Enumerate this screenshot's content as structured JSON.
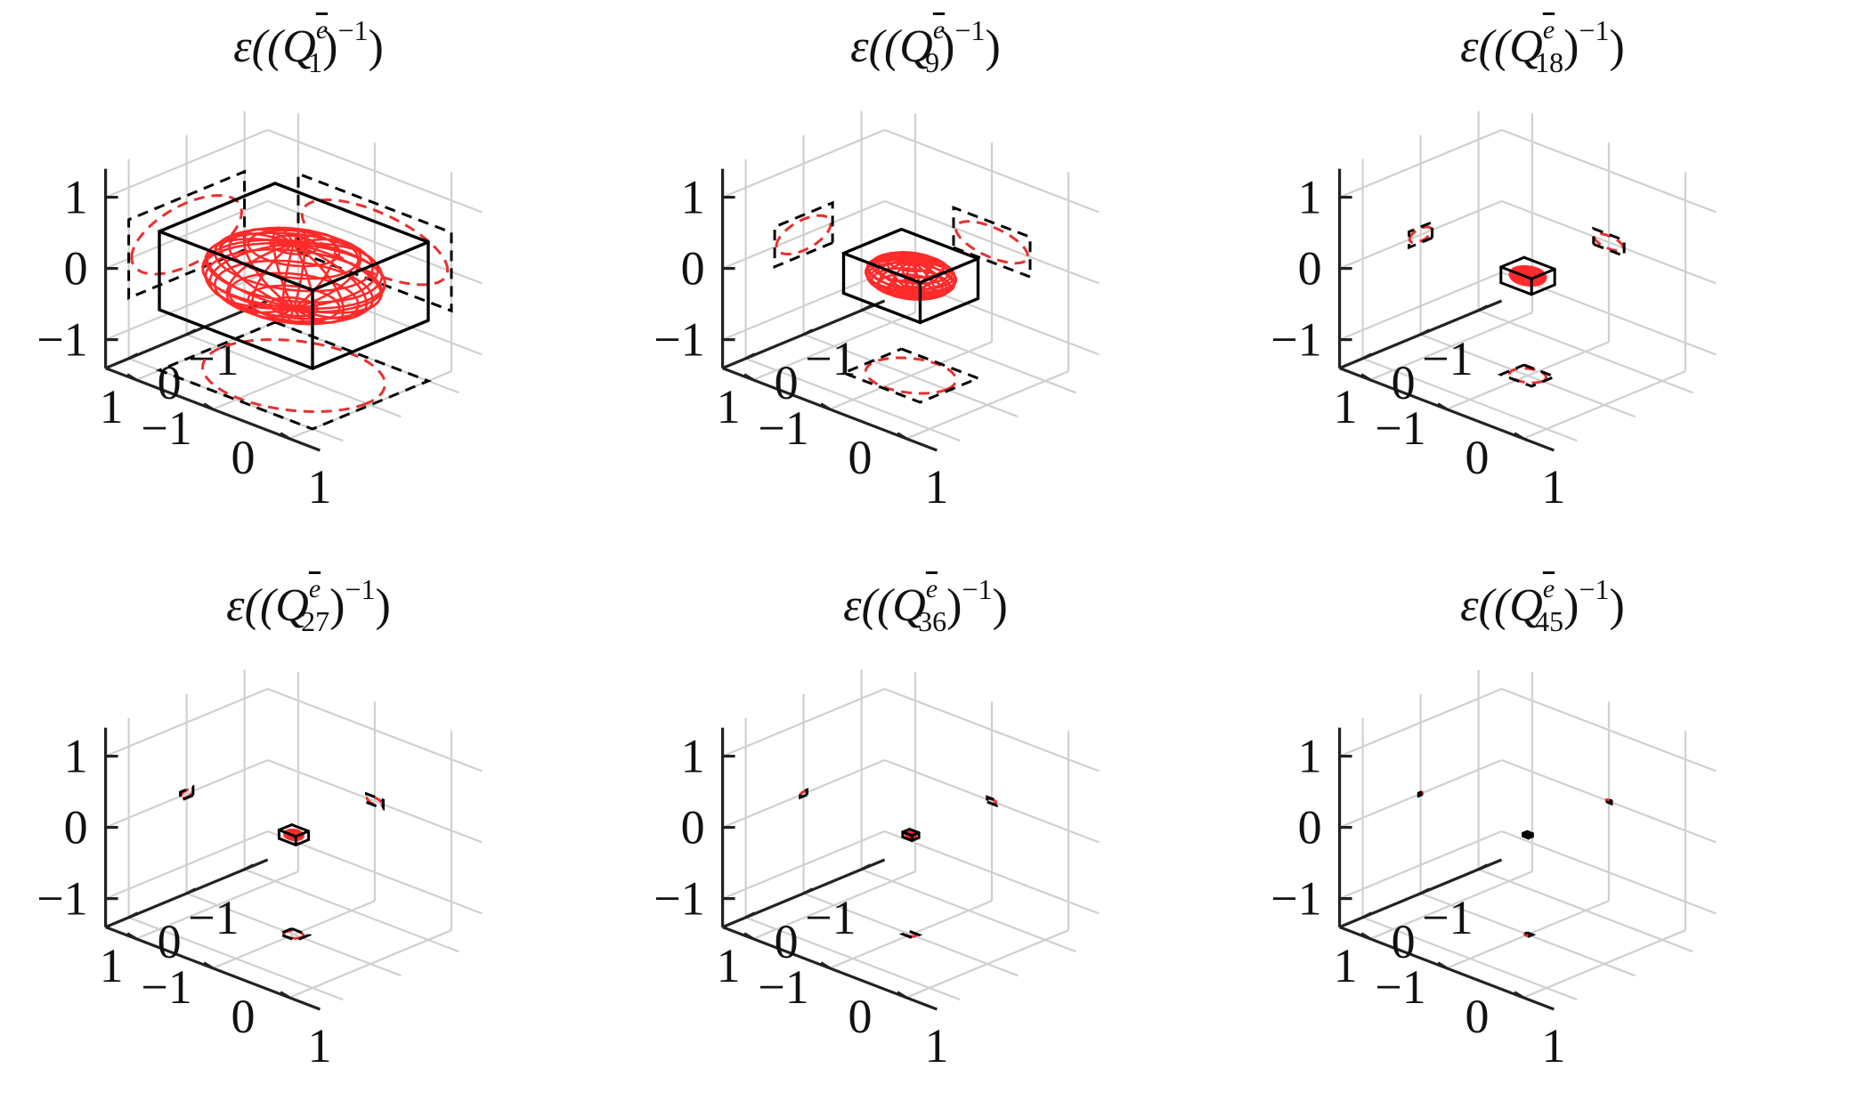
{
  "chart_data": [
    {
      "type": "3d-ellipsoid-projection",
      "title": {
        "prefix": "ε((Q",
        "superscript": "e",
        "subscript": "1",
        "suffix_sup": "−1",
        "close": ")"
      },
      "scale": 1.0,
      "x_ticks": [
        "−1",
        "0",
        "1"
      ],
      "y_ticks": [
        "−1",
        "0",
        "1"
      ],
      "z_ticks": [
        "−1",
        "0",
        "1"
      ],
      "ellipsoid_semi_axes": [
        0.95,
        0.95,
        0.45
      ],
      "box_half_extents": [
        1.0,
        1.0,
        0.55
      ]
    },
    {
      "type": "3d-ellipsoid-projection",
      "title": {
        "prefix": "ε((Q",
        "superscript": "e",
        "subscript": "9",
        "suffix_sup": "−1",
        "close": ")"
      },
      "scale": 0.5,
      "x_ticks": [
        "−1",
        "0",
        "1"
      ],
      "y_ticks": [
        "−1",
        "0",
        "1"
      ],
      "z_ticks": [
        "−1",
        "0",
        "1"
      ],
      "ellipsoid_semi_axes": [
        0.47,
        0.47,
        0.22
      ],
      "box_half_extents": [
        0.5,
        0.5,
        0.28
      ]
    },
    {
      "type": "3d-ellipsoid-projection",
      "title": {
        "prefix": "ε((Q",
        "superscript": "e",
        "subscript": "18",
        "suffix_sup": "−1",
        "close": ")"
      },
      "scale": 0.2,
      "x_ticks": [
        "−1",
        "0",
        "1"
      ],
      "y_ticks": [
        "−1",
        "0",
        "1"
      ],
      "z_ticks": [
        "−1",
        "0",
        "1"
      ],
      "ellipsoid_semi_axes": [
        0.19,
        0.19,
        0.09
      ],
      "box_half_extents": [
        0.2,
        0.2,
        0.11
      ]
    },
    {
      "type": "3d-ellipsoid-projection",
      "title": {
        "prefix": "ε((Q",
        "superscript": "e",
        "subscript": "27",
        "suffix_sup": "−1",
        "close": ")"
      },
      "scale": 0.11,
      "x_ticks": [
        "−1",
        "0",
        "1"
      ],
      "y_ticks": [
        "−1",
        "0",
        "1"
      ],
      "z_ticks": [
        "−1",
        "0",
        "1"
      ],
      "ellipsoid_semi_axes": [
        0.1,
        0.1,
        0.05
      ],
      "box_half_extents": [
        0.11,
        0.11,
        0.06
      ]
    },
    {
      "type": "3d-ellipsoid-projection",
      "title": {
        "prefix": "ε((Q",
        "superscript": "e",
        "subscript": "36",
        "suffix_sup": "−1",
        "close": ")"
      },
      "scale": 0.06,
      "x_ticks": [
        "−1",
        "0",
        "1"
      ],
      "y_ticks": [
        "−1",
        "0",
        "1"
      ],
      "z_ticks": [
        "−1",
        "0",
        "1"
      ],
      "ellipsoid_semi_axes": [
        0.055,
        0.055,
        0.03
      ],
      "box_half_extents": [
        0.06,
        0.06,
        0.035
      ]
    },
    {
      "type": "3d-ellipsoid-projection",
      "title": {
        "prefix": "ε((Q",
        "superscript": "e",
        "subscript": "45",
        "suffix_sup": "−1",
        "close": ")"
      },
      "scale": 0.035,
      "x_ticks": [
        "−1",
        "0",
        "1"
      ],
      "y_ticks": [
        "−1",
        "0",
        "1"
      ],
      "z_ticks": [
        "−1",
        "0",
        "1"
      ],
      "ellipsoid_semi_axes": [
        0.032,
        0.032,
        0.016
      ],
      "box_half_extents": [
        0.035,
        0.035,
        0.02
      ]
    }
  ],
  "colors": {
    "ellipsoid": "#ff2a2a",
    "box": "#000000",
    "grid": "#d0d0d0",
    "axis": "#222222",
    "projection_dash_red": "#e8302e",
    "projection_dash_black": "#000000"
  }
}
